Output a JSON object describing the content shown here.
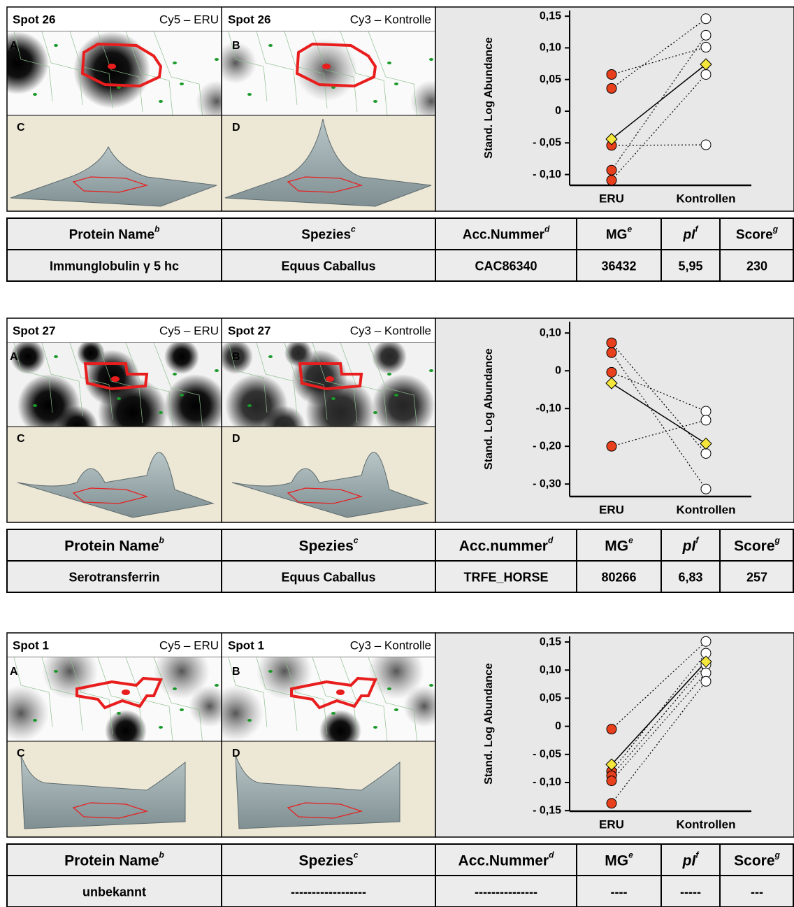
{
  "chart_data": [
    {
      "type": "dotplot",
      "y_label": "Stand. Log Abundance",
      "categories": [
        "ERU",
        "Kontrollen"
      ],
      "ylim": [
        -0.117,
        0.159
      ],
      "yticks": [
        {
          "value": 0.15,
          "label": "0,15"
        },
        {
          "value": 0.1,
          "label": "0,10"
        },
        {
          "value": 0.05,
          "label": "0,05"
        },
        0,
        {
          "value": -0.05,
          "label": "- 0,05"
        },
        {
          "value": -0.1,
          "label": "- 0,10"
        }
      ],
      "eru_values": [
        0.058,
        0.036,
        -0.054,
        -0.093,
        -0.109
      ],
      "control_values": [
        0.101,
        0.146,
        -0.053,
        0.12,
        0.058
      ],
      "mean_values": [
        -0.044,
        0.074
      ],
      "eru_color": "#e8401c",
      "control_color": "#ffffff",
      "mean_color": "#f5e63c"
    },
    {
      "type": "dotplot",
      "y_label": "Stand. Log Abundance",
      "categories": [
        "ERU",
        "Kontrollen"
      ],
      "ylim": [
        -0.333,
        0.13
      ],
      "yticks": [
        {
          "value": 0.1,
          "label": "0,10"
        },
        0,
        {
          "value": -0.1,
          "label": "-0,10"
        },
        {
          "value": -0.2,
          "label": "- 0,20"
        },
        {
          "value": -0.3,
          "label": "- 0,30"
        }
      ],
      "eru_values": [
        0.074,
        0.048,
        -0.004,
        -0.2
      ],
      "control_values": [
        -0.219,
        -0.313,
        -0.107,
        -0.131
      ],
      "mean_values": [
        -0.033,
        -0.193
      ],
      "eru_color": "#e8401c",
      "control_color": "#ffffff",
      "mean_color": "#f5e63c"
    },
    {
      "type": "dotplot",
      "y_label": "Stand. Log Abundance",
      "categories": [
        "ERU",
        "Kontrollen"
      ],
      "ylim": [
        -0.151,
        0.16
      ],
      "yticks": [
        {
          "value": 0.15,
          "label": "0,15"
        },
        {
          "value": 0.1,
          "label": "0,10"
        },
        {
          "value": 0.05,
          "label": "0,05"
        },
        0,
        {
          "value": -0.05,
          "label": "- 0,05"
        },
        {
          "value": -0.1,
          "label": "- 0,10"
        },
        {
          "value": -0.15,
          "label": "- 0,15"
        }
      ],
      "eru_values": [
        -0.005,
        -0.08,
        -0.088,
        -0.097,
        -0.137
      ],
      "control_values": [
        0.151,
        0.13,
        0.11,
        0.095,
        0.08
      ],
      "mean_values": [
        -0.068,
        0.115
      ],
      "eru_color": "#e8401c",
      "control_color": "#ffffff",
      "mean_color": "#f5e63c"
    }
  ],
  "panels": [
    {
      "left_title": "Spot 26",
      "left_channel": "Cy5 – ERU",
      "right_title": "Spot 26",
      "right_channel": "Cy3 – Kontrolle",
      "image_labels": [
        "A",
        "B",
        "C",
        "D"
      ],
      "table": {
        "header": [
          {
            "text": "Protein Name",
            "sup": "b"
          },
          {
            "text": "Spezies",
            "sup": "c"
          },
          {
            "text": "Acc.Nummer",
            "sup": "d"
          },
          {
            "text": "MG",
            "sup": "e"
          },
          {
            "text": "pI",
            "sup": "f"
          },
          {
            "text": "Score",
            "sup": "g"
          }
        ],
        "row": [
          "Immunglobulin γ 5 hc",
          "Equus Caballus",
          "CAC86340",
          "36432",
          "5,95",
          "230"
        ]
      }
    },
    {
      "left_title": "Spot 27",
      "left_channel": "Cy5 – ERU",
      "right_title": "Spot 27",
      "right_channel": "Cy3 – Kontrolle",
      "image_labels": [
        "A",
        "B",
        "C",
        "D"
      ],
      "table": {
        "header": [
          {
            "text": "Protein Name",
            "sup": "b"
          },
          {
            "text": "Spezies",
            "sup": "c"
          },
          {
            "text": "Acc.nummer",
            "sup": "d"
          },
          {
            "text": "MG",
            "sup": "e"
          },
          {
            "text": "pI",
            "sup": "f"
          },
          {
            "text": "Score",
            "sup": "g"
          }
        ],
        "row": [
          "Serotransferrin",
          "Equus Caballus",
          "TRFE_HORSE",
          "80266",
          "6,83",
          "257"
        ]
      }
    },
    {
      "left_title": "Spot 1",
      "left_channel": "Cy5 – ERU",
      "right_title": "Spot 1",
      "right_channel": "Cy3 – Kontrolle",
      "image_labels": [
        "A",
        "B",
        "C",
        "D"
      ],
      "table": {
        "header": [
          {
            "text": "Protein Name",
            "sup": "b"
          },
          {
            "text": "Spezies",
            "sup": "c"
          },
          {
            "text": "Acc.Nummer",
            "sup": "d"
          },
          {
            "text": "MG",
            "sup": "e"
          },
          {
            "text": "pI",
            "sup": "f"
          },
          {
            "text": "Score",
            "sup": "g"
          }
        ],
        "row": [
          "unbekannt",
          "------------------",
          "---------------",
          "----",
          "-----",
          "---"
        ]
      }
    }
  ]
}
